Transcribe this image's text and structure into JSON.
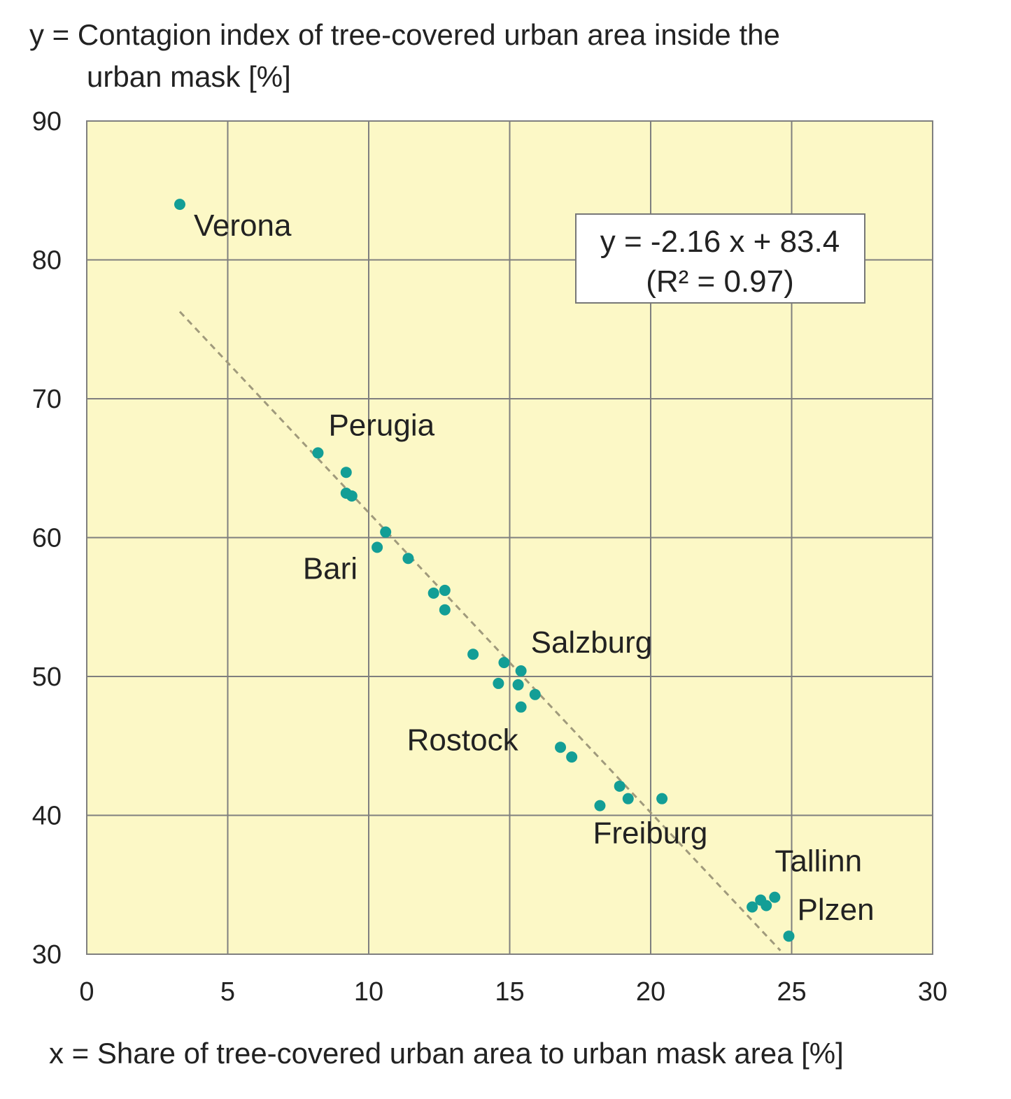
{
  "chart_data": {
    "type": "scatter",
    "title": "",
    "ylabel": [
      "y = Contagion index of tree-covered urban area inside the",
      "urban mask [%]"
    ],
    "xlabel": "x = Share of tree-covered urban area to urban mask area [%]",
    "xlim": [
      0,
      30
    ],
    "ylim": [
      30,
      90
    ],
    "xticks": [
      0,
      5,
      10,
      15,
      20,
      25,
      30
    ],
    "yticks": [
      30,
      40,
      50,
      60,
      70,
      80,
      90
    ],
    "grid": true,
    "colors": {
      "plot_bg": "#fcf8c6",
      "grid": "#7f7f7f",
      "point": "#139e96",
      "trend": "#a09a7c"
    },
    "series": [
      {
        "points": [
          [
            3.3,
            84.0
          ],
          [
            8.2,
            66.1
          ],
          [
            9.2,
            64.7
          ],
          [
            9.2,
            63.2
          ],
          [
            9.4,
            63.0
          ],
          [
            10.6,
            60.4
          ],
          [
            10.3,
            59.3
          ],
          [
            11.4,
            58.5
          ],
          [
            12.3,
            56.0
          ],
          [
            12.7,
            56.2
          ],
          [
            12.7,
            54.8
          ],
          [
            13.7,
            51.6
          ],
          [
            14.8,
            51.0
          ],
          [
            15.4,
            50.4
          ],
          [
            14.6,
            49.5
          ],
          [
            15.3,
            49.4
          ],
          [
            15.9,
            48.7
          ],
          [
            15.4,
            47.8
          ],
          [
            16.8,
            44.9
          ],
          [
            17.2,
            44.2
          ],
          [
            18.9,
            42.1
          ],
          [
            19.2,
            41.2
          ],
          [
            20.4,
            41.2
          ],
          [
            18.2,
            40.7
          ],
          [
            23.6,
            33.4
          ],
          [
            23.9,
            33.9
          ],
          [
            24.1,
            33.5
          ],
          [
            24.4,
            34.1
          ],
          [
            24.9,
            31.3
          ]
        ]
      }
    ],
    "trendline": {
      "slope": -2.16,
      "intercept": 83.4,
      "x_range": [
        3.3,
        24.6
      ]
    },
    "equation": [
      "y = -2.16 x + 83.4",
      "(R² = 0.97)"
    ],
    "annotations": [
      {
        "text": "Verona",
        "x": 3.3,
        "y": 84.0
      },
      {
        "text": "Perugia",
        "x": 8.2,
        "y": 66.1
      },
      {
        "text": "Bari",
        "x": 10.3,
        "y": 59.3
      },
      {
        "text": "Salzburg",
        "x": 15.4,
        "y": 50.4
      },
      {
        "text": "Rostock",
        "x": 15.3,
        "y": 47.8
      },
      {
        "text": "Freiburg",
        "x": 18.2,
        "y": 40.7
      },
      {
        "text": "Tallinn",
        "x": 24.4,
        "y": 34.1
      },
      {
        "text": "Plzen",
        "x": 24.9,
        "y": 31.3
      }
    ]
  }
}
